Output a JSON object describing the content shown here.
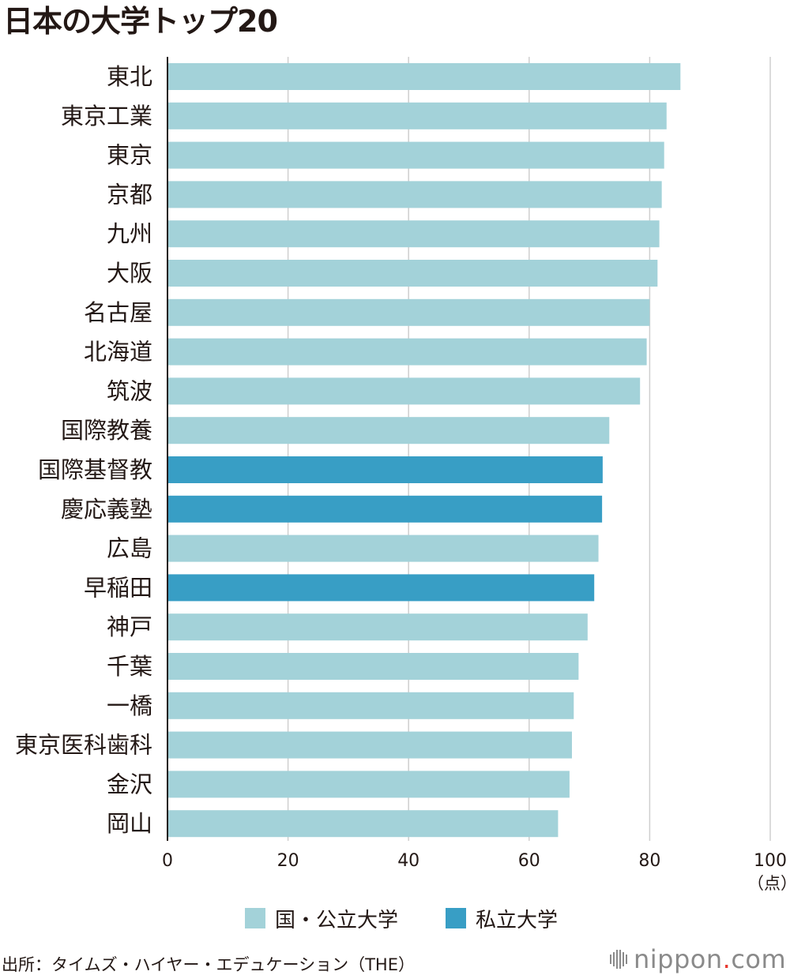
{
  "colors": {
    "national_public": "#a3d2d9",
    "private": "#389ec5",
    "axis": "#231815",
    "grid": "#cfcfcf",
    "logo_text": "#8a8a8a",
    "logo_dot": "#e8382f"
  },
  "chart_data": {
    "type": "bar",
    "orientation": "horizontal",
    "title": "日本の大学トップ20",
    "categories": [
      "東北",
      "東京工業",
      "東京",
      "京都",
      "九州",
      "大阪",
      "名古屋",
      "北海道",
      "筑波",
      "国際教養",
      "国際基督教",
      "慶応義塾",
      "広島",
      "早稲田",
      "神戸",
      "千葉",
      "一橋",
      "東京医科歯科",
      "金沢",
      "岡山"
    ],
    "values": [
      85.1,
      82.8,
      82.4,
      82.0,
      81.6,
      81.3,
      80.0,
      79.5,
      78.4,
      73.3,
      72.2,
      72.1,
      71.5,
      70.8,
      69.7,
      68.2,
      67.4,
      67.1,
      66.7,
      64.8
    ],
    "types": [
      "national_public",
      "national_public",
      "national_public",
      "national_public",
      "national_public",
      "national_public",
      "national_public",
      "national_public",
      "national_public",
      "national_public",
      "private",
      "private",
      "national_public",
      "private",
      "national_public",
      "national_public",
      "national_public",
      "national_public",
      "national_public",
      "national_public"
    ],
    "xlim": [
      0,
      100
    ],
    "xticks": [
      0,
      20,
      40,
      60,
      80,
      100
    ],
    "xtick_labels": [
      "0",
      "20",
      "40",
      "60",
      "80",
      "100"
    ],
    "unit_label": "（点）",
    "grid": true,
    "legend": [
      {
        "key": "national_public",
        "label": "国・公立大学"
      },
      {
        "key": "private",
        "label": "私立大学"
      }
    ],
    "legend_position": "bottom"
  },
  "source": "出所：タイムズ・ハイヤー・エデュケーション（THE）",
  "logo": {
    "name": "nippon",
    "dot": ".",
    "suffix": "com"
  }
}
